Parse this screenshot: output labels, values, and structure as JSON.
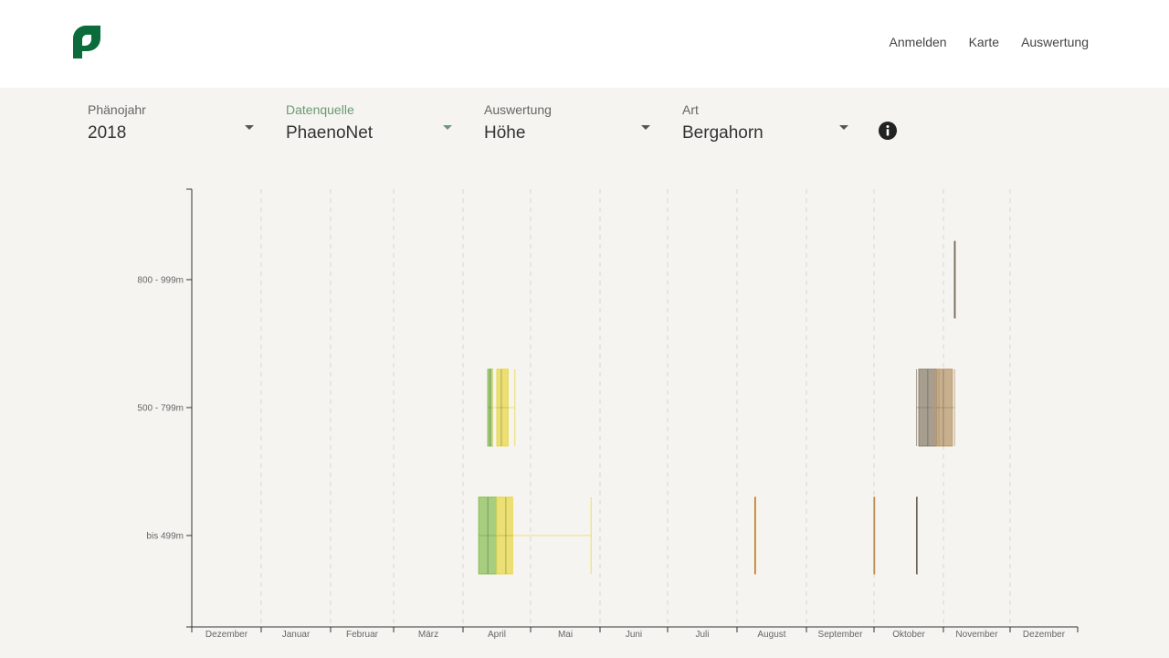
{
  "nav": {
    "items": [
      "Anmelden",
      "Karte",
      "Auswertung"
    ]
  },
  "filters": [
    {
      "label": "Phänojahr",
      "value": "2018",
      "active": false
    },
    {
      "label": "Datenquelle",
      "value": "PhaenoNet",
      "active": true
    },
    {
      "label": "Auswertung",
      "value": "Höhe",
      "active": false
    },
    {
      "label": "Art",
      "value": "Bergahorn",
      "active": false
    }
  ],
  "colors": {
    "brand": "#0b6b3a",
    "accent": "#6a9a72",
    "blattaustrieb": "#8cc059",
    "bluete": "#e8d84a",
    "blattverfaerbung": "#b89a6e",
    "blattfall": "#8c8270",
    "tan": "#d4a060",
    "orange": "#e8a030"
  },
  "chart_data": {
    "type": "boxplot",
    "x_axis": {
      "type": "month",
      "tick_labels": [
        "Dezember",
        "Januar",
        "Februar",
        "März",
        "April",
        "Mai",
        "Juni",
        "Juli",
        "August",
        "September",
        "Oktober",
        "November",
        "Dezember"
      ]
    },
    "y_axis": {
      "categories": [
        "800 - 999m",
        "500 - 799m",
        "bis 499m"
      ]
    },
    "grid": "vertical dashed at month boundaries",
    "boxes": [
      {
        "category": "800 - 999m",
        "color": "#8c8270",
        "min": "2018-11-06",
        "q1": "2018-11-06",
        "median": "2018-11-06",
        "q3": "2018-11-06",
        "max": "2018-11-06"
      },
      {
        "category": "500 - 799m",
        "color": "#8cc059",
        "min": "2018-04-12",
        "q1": "2018-04-12",
        "median": "2018-04-13",
        "q3": "2018-04-14",
        "max": "2018-04-14"
      },
      {
        "category": "500 - 799m",
        "color": "#e8d84a",
        "min": "2018-04-14",
        "q1": "2018-04-16",
        "median": "2018-04-18",
        "q3": "2018-04-21",
        "max": "2018-04-24"
      },
      {
        "category": "500 - 799m",
        "color": "#8c8270",
        "min": "2018-10-20",
        "q1": "2018-10-21",
        "median": "2018-10-25",
        "q3": "2018-10-29",
        "max": "2018-10-30"
      },
      {
        "category": "500 - 799m",
        "color": "#b89a6e",
        "min": "2018-10-27",
        "q1": "2018-10-29",
        "median": "2018-11-01",
        "q3": "2018-11-05",
        "max": "2018-11-06"
      },
      {
        "category": "bis 499m",
        "color": "#8cc059",
        "min": "2018-04-08",
        "q1": "2018-04-08",
        "median": "2018-04-12",
        "q3": "2018-04-16",
        "max": "2018-04-16"
      },
      {
        "category": "bis 499m",
        "color": "#e8d84a",
        "min": "2018-04-16",
        "q1": "2018-04-16",
        "median": "2018-04-20",
        "q3": "2018-04-23",
        "max": "2018-05-28"
      },
      {
        "category": "bis 499m",
        "color": "#e8a030",
        "min": "2018-08-09",
        "q1": "2018-08-09",
        "median": "2018-08-09",
        "q3": "2018-08-09",
        "max": "2018-08-09"
      },
      {
        "category": "bis 499m",
        "color": "#d4a060",
        "min": "2018-10-01",
        "q1": "2018-10-01",
        "median": "2018-10-01",
        "q3": "2018-10-01",
        "max": "2018-10-01"
      },
      {
        "category": "bis 499m",
        "color": "#8c8270",
        "min": "2018-10-20",
        "q1": "2018-10-20",
        "median": "2018-10-20",
        "q3": "2018-10-20",
        "max": "2018-10-20"
      }
    ]
  }
}
